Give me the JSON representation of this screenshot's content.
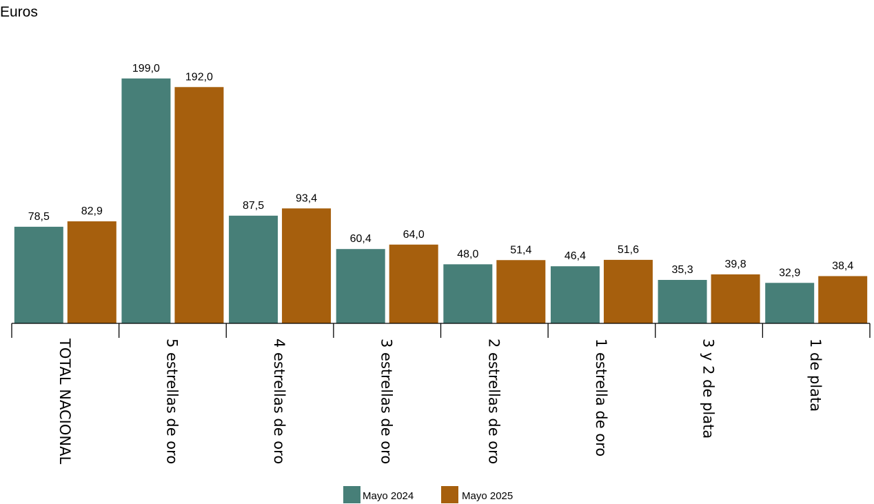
{
  "chart_data": {
    "type": "bar",
    "title": "",
    "ylabel": "Euros",
    "xlabel": "",
    "ylim": [
      0,
      210
    ],
    "grid": false,
    "legend_position": "bottom-center",
    "categories": [
      "TOTAL NACIONAL",
      "5 estrellas de oro",
      "4 estrellas de oro",
      "3 estrellas de oro",
      "2 estrellas de oro",
      "1 estrella de oro",
      "3 y 2 de plata",
      "1 de plata"
    ],
    "series": [
      {
        "name": "Mayo 2024",
        "color": "#477f78",
        "values": [
          78.5,
          199.0,
          87.5,
          60.4,
          48.0,
          46.4,
          35.3,
          32.9
        ],
        "labels": [
          "78,5",
          "199,0",
          "87,5",
          "60,4",
          "48,0",
          "46,4",
          "35,3",
          "32,9"
        ]
      },
      {
        "name": "Mayo 2025",
        "color": "#a65f0d",
        "values": [
          82.9,
          192.0,
          93.4,
          64.0,
          51.4,
          51.6,
          39.8,
          38.4
        ],
        "labels": [
          "82,9",
          "192,0",
          "93,4",
          "64,0",
          "51,4",
          "51,6",
          "39,8",
          "38,4"
        ]
      }
    ]
  }
}
